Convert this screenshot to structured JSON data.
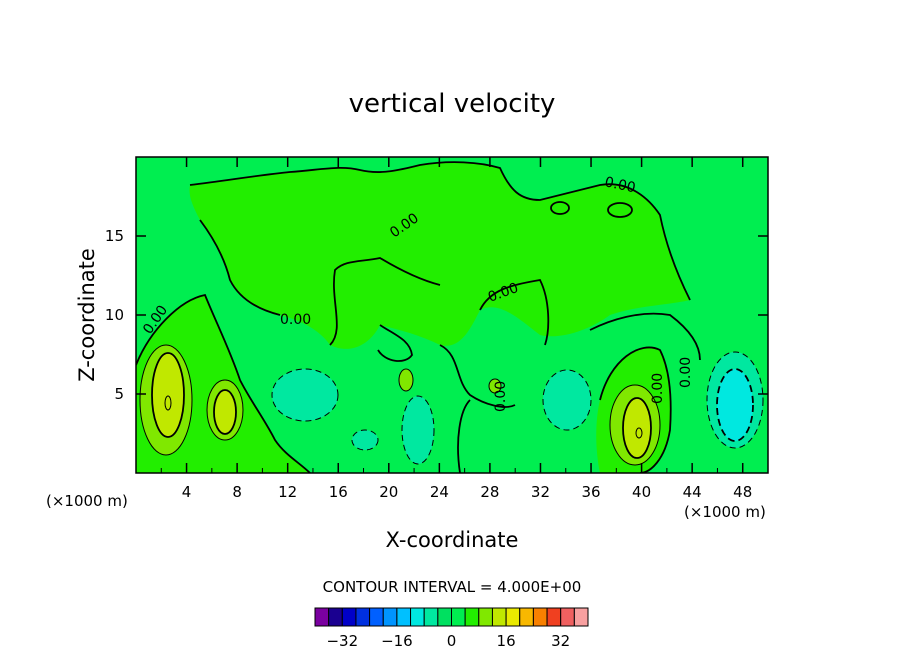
{
  "chart_data": {
    "type": "heatmap",
    "title": "vertical velocity",
    "xlabel": "X-coordinate",
    "ylabel": "Z-coordinate",
    "x_unit": "(×1000 m)",
    "y_unit": "(×1000 m)",
    "xlim": [
      0,
      50
    ],
    "ylim": [
      0,
      20
    ],
    "x_ticks": [
      4,
      8,
      12,
      16,
      20,
      24,
      28,
      32,
      36,
      40,
      44,
      48
    ],
    "y_ticks": [
      5,
      10,
      15
    ],
    "contour_interval_text": "CONTOUR INTERVAL = 4.000E+00",
    "zero_contour_label": "0.00",
    "colorbar": {
      "levels": [
        -40,
        -36,
        -32,
        -28,
        -24,
        -20,
        -16,
        -12,
        -8,
        -4,
        0,
        4,
        8,
        12,
        16,
        20,
        24,
        28,
        32,
        36,
        40
      ],
      "colors": [
        "#7a00a0",
        "#1a0090",
        "#0000c8",
        "#0030e0",
        "#0060ff",
        "#0094ff",
        "#00c0ff",
        "#00e8e0",
        "#00e8a0",
        "#00e060",
        "#00ee50",
        "#22ee00",
        "#80e800",
        "#c0e800",
        "#eaea00",
        "#f8b800",
        "#f88000",
        "#f04020",
        "#f06060",
        "#f8a0a0"
      ],
      "tick_labels": [
        "−32",
        "−16",
        "0",
        "16",
        "32"
      ],
      "tick_values": [
        -32,
        -16,
        0,
        16,
        32
      ]
    },
    "fields": {
      "positive_centers": [
        {
          "x": 2.5,
          "z": 4.5,
          "max": 12
        },
        {
          "x": 7,
          "z": 4,
          "max": 8
        },
        {
          "x": 39.5,
          "z": 3,
          "max": 12
        },
        {
          "x": 21.5,
          "z": 5.8,
          "max": 4
        },
        {
          "x": 29,
          "z": 5.2,
          "max": 4
        }
      ],
      "negative_centers": [
        {
          "x": 14,
          "z": 5,
          "min": -4
        },
        {
          "x": 22,
          "z": 3,
          "min": -4
        },
        {
          "x": 34,
          "z": 4,
          "min": -4
        },
        {
          "x": 47,
          "z": 4,
          "min": -8
        }
      ]
    }
  }
}
